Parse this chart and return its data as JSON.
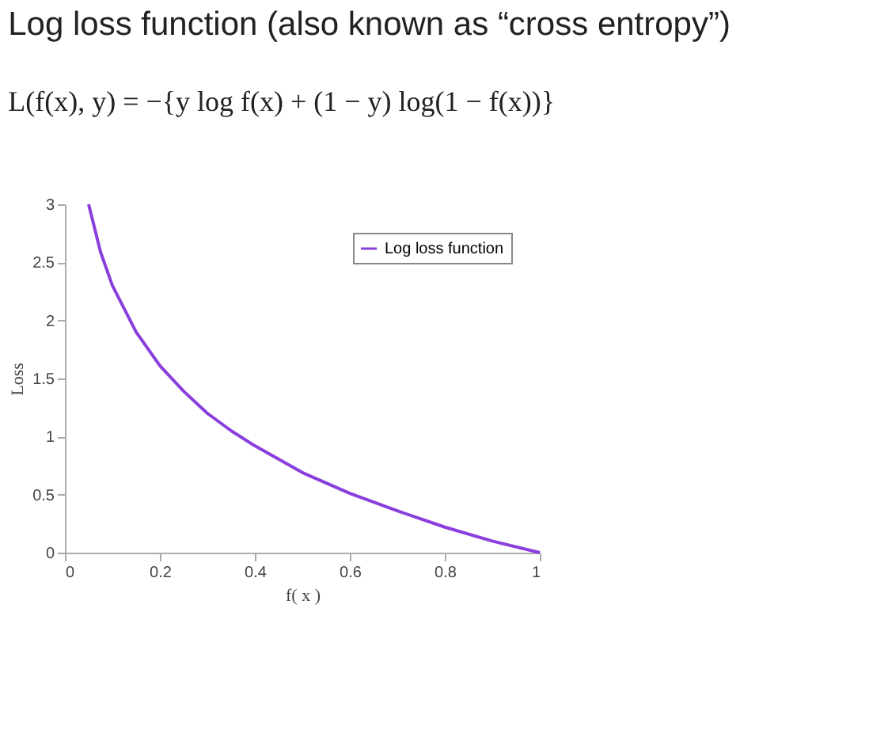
{
  "chart_data": {
    "type": "line",
    "title": "Log loss function (also known as “cross entropy”)",
    "annotations": [
      "L(f(x), y) = −{y log f(x) + (1 − y) log(1 − f(x))}"
    ],
    "xlabel": "f( x )",
    "ylabel": "Loss",
    "x": [
      0.05,
      0.075,
      0.1,
      0.15,
      0.2,
      0.25,
      0.3,
      0.35,
      0.4,
      0.5,
      0.6,
      0.7,
      0.8,
      0.9,
      1.0
    ],
    "series": [
      {
        "name": "Log loss function",
        "color": "#8a3fdc",
        "values": [
          3.0,
          2.59,
          2.3,
          1.9,
          1.61,
          1.39,
          1.2,
          1.05,
          0.92,
          0.69,
          0.51,
          0.36,
          0.22,
          0.1,
          0.0
        ]
      }
    ],
    "xlim": [
      0,
      1
    ],
    "xticks": [
      0,
      0.2,
      0.4,
      0.6,
      0.8,
      1
    ],
    "ylim": [
      0,
      3
    ],
    "yticks": [
      0,
      0.5,
      1,
      1.5,
      2,
      2.5,
      3
    ],
    "grid": false,
    "legend": "top right",
    "marker": "none",
    "line_style": "solid"
  }
}
